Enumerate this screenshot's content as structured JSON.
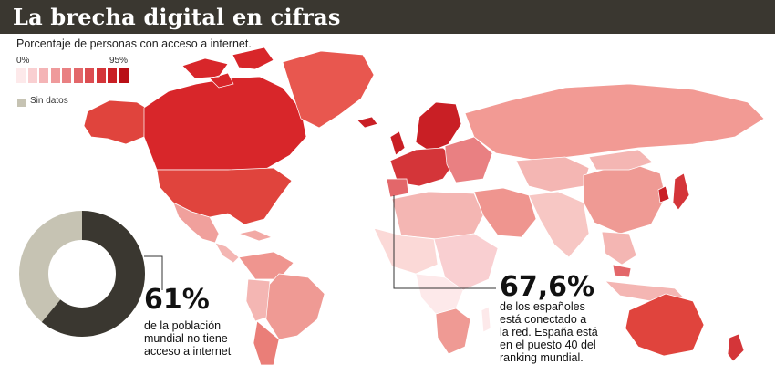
{
  "header": {
    "title": "La brecha digital en cifras",
    "subtitle": "Porcentaje de personas con acceso a internet."
  },
  "legend": {
    "min_label": "0%",
    "max_label": "95%",
    "scale_colors": [
      "#fde9ea",
      "#f9cfd1",
      "#f4b4b6",
      "#ef9a9b",
      "#e98082",
      "#e3676a",
      "#dc4d51",
      "#d43539",
      "#c91f25",
      "#b90f16"
    ],
    "no_data_label": "Sin datos",
    "no_data_color": "#c6c3b3"
  },
  "world_stat": {
    "value": "61%",
    "lines": [
      "de la población",
      "mundial no tiene",
      "acceso a internet"
    ],
    "fraction_without_access": 0.61,
    "colors": {
      "without": "#3a3730",
      "with": "#c6c3b3"
    }
  },
  "spain_stat": {
    "value": "67,6%",
    "lines": [
      "de los españoles",
      "está conectado a",
      "la red. España está",
      "en el puesto 40 del",
      "ranking mundial."
    ]
  }
}
